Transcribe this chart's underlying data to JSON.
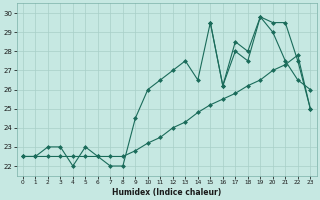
{
  "xlabel": "Humidex (Indice chaleur)",
  "ylabel": "",
  "xlim": [
    -0.5,
    23.5
  ],
  "ylim": [
    21.5,
    30.5
  ],
  "xticks": [
    0,
    1,
    2,
    3,
    4,
    5,
    6,
    7,
    8,
    9,
    10,
    11,
    12,
    13,
    14,
    15,
    16,
    17,
    18,
    19,
    20,
    21,
    22,
    23
  ],
  "yticks": [
    22,
    23,
    24,
    25,
    26,
    27,
    28,
    29,
    30
  ],
  "bg_color": "#c6e8e2",
  "grid_color": "#a8cfc8",
  "line_color": "#1a6b5a",
  "series1_x": [
    0,
    1,
    2,
    3,
    4,
    5,
    6,
    7,
    8,
    9,
    10,
    11,
    12,
    13,
    14,
    15,
    16,
    17,
    18,
    19,
    20,
    21,
    22,
    23
  ],
  "series1_y": [
    22.5,
    22.5,
    22.5,
    22.5,
    22.5,
    22.5,
    22.5,
    22.5,
    22.5,
    22.8,
    23.2,
    23.5,
    24.0,
    24.3,
    24.8,
    25.2,
    25.5,
    25.8,
    26.2,
    26.5,
    27.0,
    27.3,
    27.8,
    25.0
  ],
  "series2_x": [
    0,
    1,
    2,
    3,
    4,
    5,
    6,
    7,
    8,
    9,
    10,
    11,
    12,
    13,
    14,
    15,
    16,
    17,
    18,
    19,
    20,
    21,
    22,
    23
  ],
  "series2_y": [
    22.5,
    22.5,
    23.0,
    23.0,
    22.0,
    23.0,
    22.5,
    22.0,
    22.0,
    24.5,
    26.0,
    26.5,
    27.0,
    27.5,
    26.5,
    29.5,
    26.2,
    28.0,
    27.5,
    29.8,
    29.0,
    27.5,
    26.5,
    26.0
  ],
  "series3_x": [
    15,
    16,
    17,
    18,
    19,
    20,
    21,
    22,
    23
  ],
  "series3_y": [
    29.5,
    26.2,
    28.5,
    28.0,
    29.8,
    29.5,
    29.5,
    27.5,
    25.0
  ],
  "markersize": 2.5,
  "linewidth": 0.8
}
